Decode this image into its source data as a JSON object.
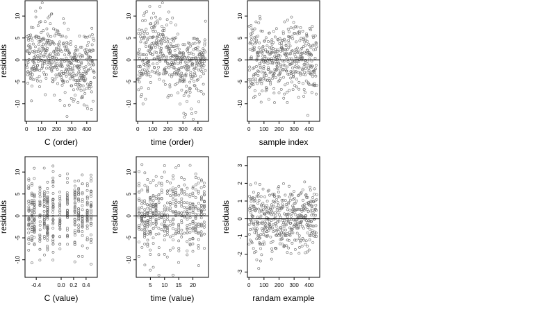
{
  "chart_data": [
    {
      "type": "scatter",
      "xlabel": "C (order)",
      "ylabel": "residuals",
      "xlim": [
        -10,
        470
      ],
      "ylim": [
        -14,
        13.5
      ],
      "xticks": [
        0,
        100,
        200,
        300,
        400
      ],
      "yticks": [
        -10,
        -5,
        0,
        5,
        10
      ],
      "hline": 0,
      "point_count": 450,
      "spread": 4.8,
      "pattern": "order_wave",
      "seed": 11
    },
    {
      "type": "scatter",
      "xlabel": "time (order)",
      "ylabel": "residuals",
      "xlim": [
        -10,
        470
      ],
      "ylim": [
        -14,
        13.5
      ],
      "xticks": [
        0,
        100,
        200,
        300,
        400
      ],
      "yticks": [
        -10,
        -5,
        0,
        5,
        10
      ],
      "hline": 0,
      "point_count": 450,
      "spread": 4.8,
      "pattern": "order_wave",
      "seed": 23
    },
    {
      "type": "scatter",
      "xlabel": "sample index",
      "ylabel": "residuals",
      "xlim": [
        -10,
        470
      ],
      "ylim": [
        -14,
        13.5
      ],
      "xticks": [
        0,
        100,
        200,
        300,
        400
      ],
      "yticks": [
        -10,
        -5,
        0,
        5,
        10
      ],
      "hline": 0,
      "point_count": 450,
      "spread": 4.8,
      "pattern": "uniform",
      "seed": 37
    },
    {
      "type": "scatter",
      "xlabel": "C (value)",
      "ylabel": "residuals",
      "xlim": [
        -0.58,
        0.58
      ],
      "ylim": [
        -14,
        13.5
      ],
      "xticks": [
        -0.4,
        0.0,
        0.2,
        0.4
      ],
      "xtick_labels": [
        "-0.4",
        "0.0",
        "0.2",
        "0.4"
      ],
      "yticks": [
        -10,
        -5,
        0,
        5,
        10
      ],
      "hline": 0,
      "point_count": 450,
      "spread": 4.8,
      "pattern": "discrete_columns",
      "columns": [
        -0.52,
        -0.47,
        -0.43,
        -0.34,
        -0.27,
        -0.22,
        -0.13,
        -0.02,
        0.1,
        0.22,
        0.28,
        0.34,
        0.42,
        0.48
      ],
      "seed": 51
    },
    {
      "type": "scatter",
      "xlabel": "time (value)",
      "ylabel": "residuals",
      "xlim": [
        0,
        25.5
      ],
      "ylim": [
        -14,
        13.5
      ],
      "xticks": [
        5,
        10,
        15,
        20
      ],
      "yticks": [
        -10,
        -5,
        0,
        5,
        10
      ],
      "hline": 0,
      "point_count": 450,
      "spread": 4.8,
      "pattern": "discrete_columns",
      "columns": [
        1,
        2,
        3,
        4,
        5,
        6,
        7,
        8,
        9,
        10,
        11,
        12,
        13,
        14,
        15,
        16,
        17,
        18,
        19,
        20,
        21,
        22,
        23,
        24
      ],
      "seed": 67
    },
    {
      "type": "scatter",
      "xlabel": "randam example",
      "ylabel": "residuals",
      "xlim": [
        -10,
        470
      ],
      "ylim": [
        -3.3,
        3.5
      ],
      "xticks": [
        0,
        100,
        200,
        300,
        400
      ],
      "yticks": [
        -3,
        -2,
        -1,
        0,
        1,
        2,
        3
      ],
      "hline": 0,
      "point_count": 450,
      "spread": 1.1,
      "pattern": "uniform",
      "seed": 79
    }
  ]
}
